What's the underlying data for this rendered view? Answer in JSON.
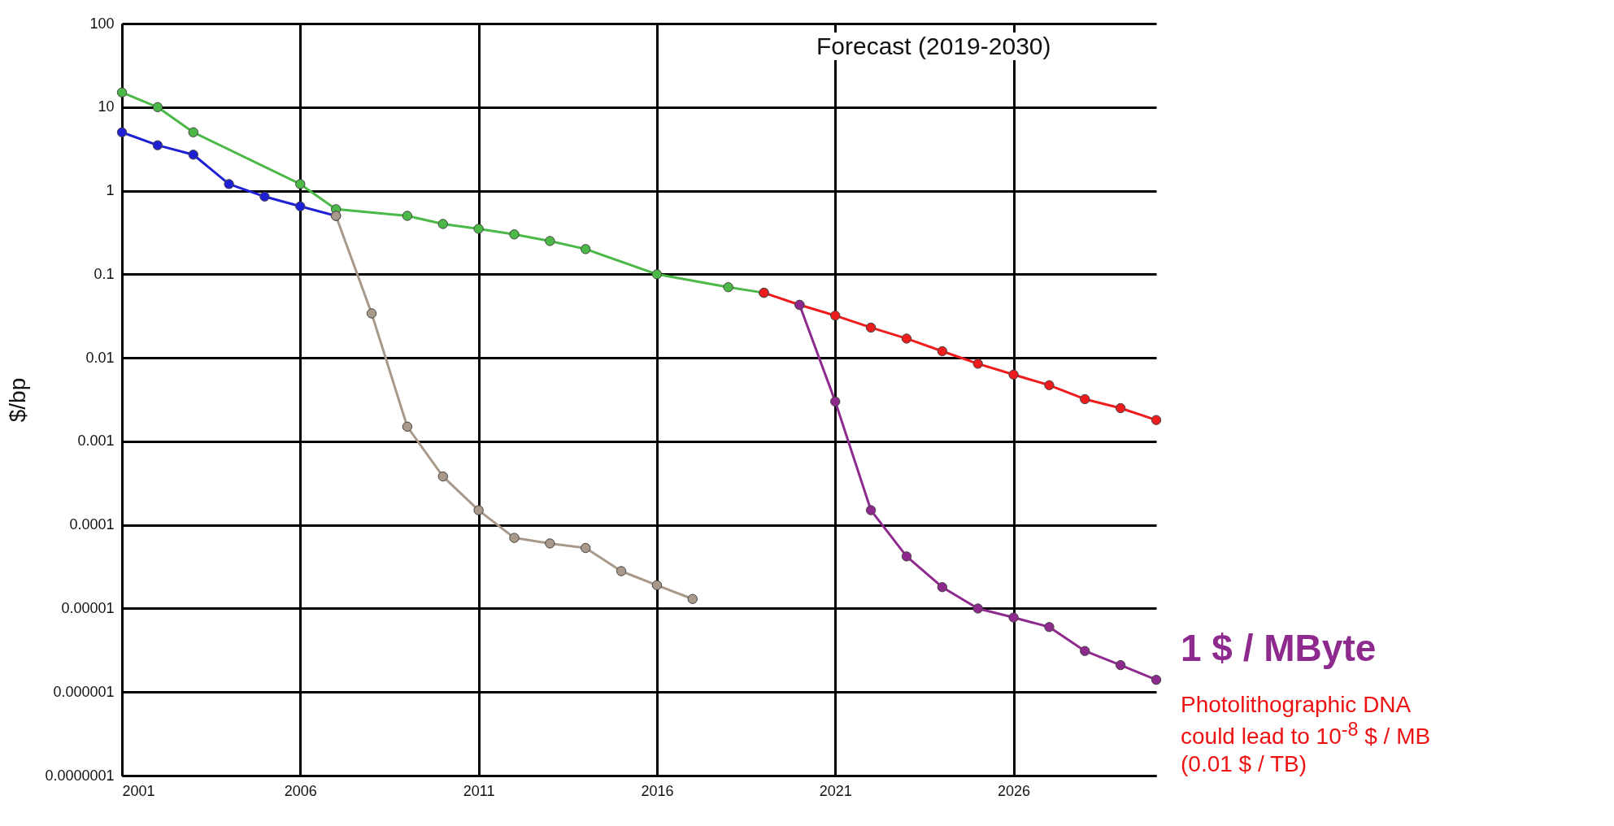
{
  "chart_data": {
    "type": "line",
    "ylabel": "$/bp",
    "log": "y",
    "grid": true,
    "marker": "circle",
    "line_style": "solid",
    "xlim": [
      2001,
      2030
    ],
    "xticks": [
      2001,
      2006,
      2011,
      2016,
      2021,
      2026
    ],
    "ylim": [
      1e-07,
      100
    ],
    "yticks": [
      {
        "value": 1e-07,
        "label": "0.0000001"
      },
      {
        "value": 1e-06,
        "label": "0.000001"
      },
      {
        "value": 1e-05,
        "label": "0.00001"
      },
      0.0001,
      0.001,
      0.01,
      0.1,
      1,
      10,
      100
    ],
    "series": [
      {
        "color": "#1f1fd6",
        "x": [
          2001,
          2002,
          2003,
          2004,
          2005,
          2006,
          2007
        ],
        "values": [
          5,
          3.5,
          2.7,
          1.2,
          0.85,
          0.65,
          0.5
        ]
      },
      {
        "color": "#4cb848",
        "x": [
          2001,
          2002,
          2003,
          2006,
          2007,
          2009,
          2010,
          2011,
          2012,
          2013,
          2014,
          2016,
          2018,
          2019
        ],
        "values": [
          15,
          10,
          5,
          1.2,
          0.6,
          0.5,
          0.4,
          0.35,
          0.3,
          0.25,
          0.2,
          0.1,
          0.07,
          0.06
        ]
      },
      {
        "color": "#a8998a",
        "x": [
          2007,
          2008,
          2009,
          2010,
          2011,
          2012,
          2013,
          2014,
          2015,
          2016,
          2017
        ],
        "values": [
          0.5,
          0.034,
          0.0015,
          0.00038,
          0.00015,
          7e-05,
          6e-05,
          5.3e-05,
          2.8e-05,
          1.9e-05,
          1.3e-05
        ]
      },
      {
        "color": "#ee1c1c",
        "x": [
          2019,
          2020,
          2021,
          2022,
          2023,
          2024,
          2025,
          2026,
          2027,
          2028,
          2029,
          2030
        ],
        "values": [
          0.06,
          0.043,
          0.032,
          0.023,
          0.017,
          0.012,
          0.0085,
          0.0063,
          0.0047,
          0.0032,
          0.0025,
          0.0018
        ]
      },
      {
        "color": "#8e2a8e",
        "x": [
          2020,
          2021,
          2022,
          2023,
          2024,
          2025,
          2026,
          2027,
          2028,
          2029,
          2030
        ],
        "values": [
          0.043,
          0.003,
          0.00015,
          4.2e-05,
          1.8e-05,
          1e-05,
          7.8e-06,
          6e-06,
          3.1e-06,
          2.1e-06,
          1.4e-06
        ]
      }
    ],
    "annotations": [
      "Forecast (2019-2030)",
      "1 $ / MByte",
      "Photolithographic DNA could lead to 10$^{-8}$ $ / MB (0.01 $ / TB)"
    ]
  }
}
